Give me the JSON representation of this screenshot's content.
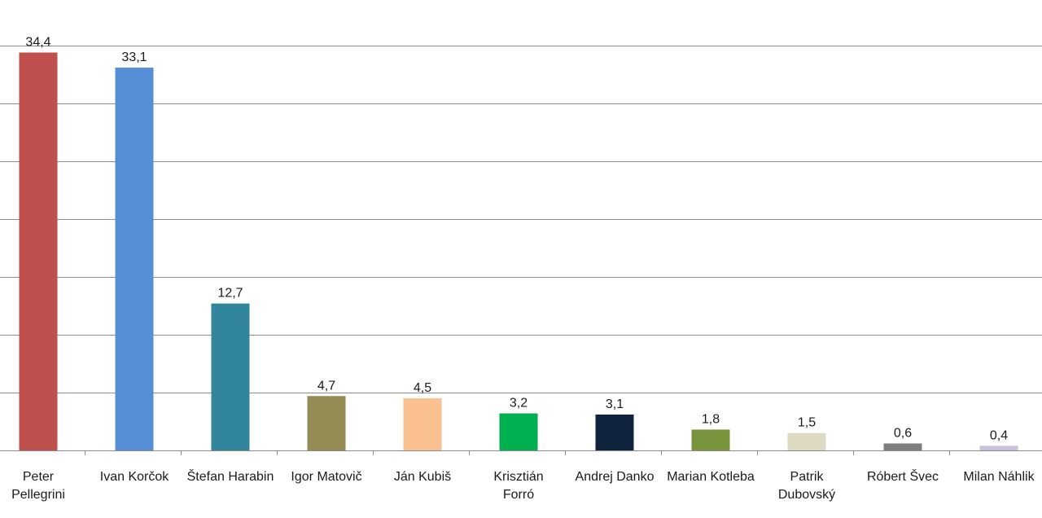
{
  "chart_data": {
    "type": "bar",
    "categories": [
      "Peter Pellegrini",
      "Ivan Korčok",
      "Štefan Harabin",
      "Igor Matovič",
      "Ján Kubiš",
      "Krisztián Forró",
      "Andrej Danko",
      "Marian Kotleba",
      "Patrik Dubovský",
      "Róbert Švec",
      "Milan Náhlik"
    ],
    "values": [
      34.4,
      33.1,
      12.7,
      4.7,
      4.5,
      3.2,
      3.1,
      1.8,
      1.5,
      0.6,
      0.4
    ],
    "value_labels": [
      "34,4",
      "33,1",
      "12,7",
      "4,7",
      "4,5",
      "3,2",
      "3,1",
      "1,8",
      "1,5",
      "0,6",
      "0,4"
    ],
    "colors": [
      "#c0504d",
      "#558ed5",
      "#31859c",
      "#948a54",
      "#fac090",
      "#00b050",
      "#10243e",
      "#77933c",
      "#ddd9c3",
      "#7f7f7f",
      "#ccc1da"
    ],
    "title": "",
    "xlabel": "",
    "ylabel": "",
    "ylim": [
      0,
      35
    ],
    "grid": true,
    "legend": "none"
  }
}
